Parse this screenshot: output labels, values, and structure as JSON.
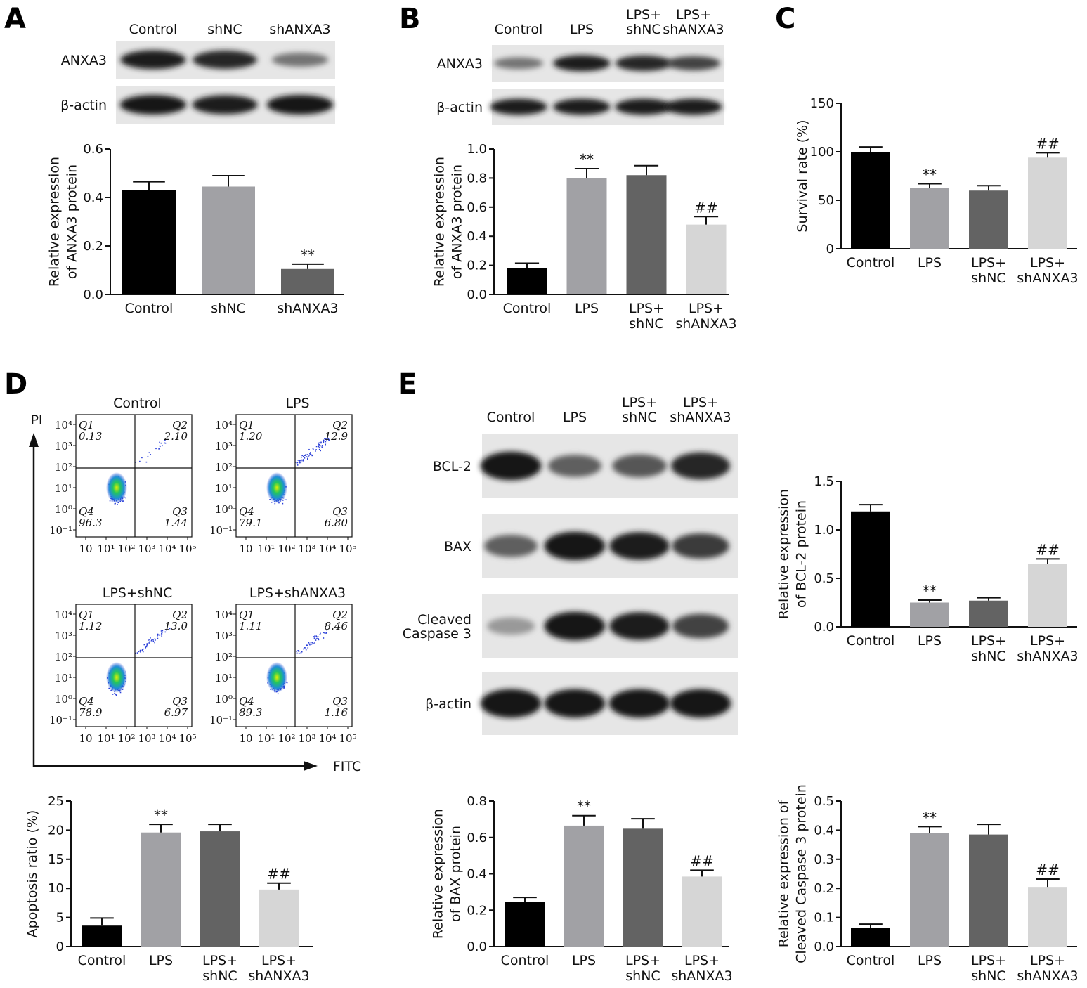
{
  "panel_labels": [
    "A",
    "B",
    "C",
    "D",
    "E"
  ],
  "blots": {
    "A": {
      "lanes": [
        "Control",
        "shNC",
        "shANXA3"
      ],
      "bands": [
        {
          "label": "ANXA3",
          "intensity": [
            0.9,
            0.85,
            0.45
          ]
        },
        {
          "label": "β-actin",
          "intensity": [
            0.95,
            0.9,
            0.95
          ]
        }
      ]
    },
    "B": {
      "lanes": [
        "Control",
        "LPS",
        "LPS+\nshNC",
        "LPS+\nshANXA3"
      ],
      "bands": [
        {
          "label": "ANXA3",
          "intensity": [
            0.45,
            0.9,
            0.85,
            0.7
          ]
        },
        {
          "label": "β-actin",
          "intensity": [
            0.9,
            0.9,
            0.9,
            0.9
          ]
        }
      ]
    },
    "E": {
      "lanes": [
        "Control",
        "LPS",
        "LPS+\nshNC",
        "LPS+\nshANXA3"
      ],
      "bands": [
        {
          "label": "BCL-2",
          "intensity": [
            0.95,
            0.55,
            0.6,
            0.85
          ]
        },
        {
          "label": "BAX",
          "intensity": [
            0.55,
            0.95,
            0.9,
            0.75
          ]
        },
        {
          "label": "Cleaved\nCaspase 3",
          "intensity": [
            0.25,
            0.95,
            0.9,
            0.7
          ]
        },
        {
          "label": "β-actin",
          "intensity": [
            0.95,
            0.95,
            0.95,
            0.95
          ]
        }
      ]
    }
  },
  "flow": {
    "y_axis_label": "PI",
    "x_axis_label": "FITC",
    "x_ticks": [
      "10",
      "10¹",
      "10²",
      "10³",
      "10⁴",
      "10⁵"
    ],
    "y_ticks": [
      "10⁴",
      "10³",
      "10²",
      "10¹",
      "10⁰",
      "10⁻¹"
    ],
    "plots": [
      {
        "title": "Control",
        "Q1": "0.13",
        "Q2": "2.10",
        "Q3": "1.44",
        "Q4": "96.3"
      },
      {
        "title": "LPS",
        "Q1": "1.20",
        "Q2": "12.9",
        "Q3": "6.80",
        "Q4": "79.1"
      },
      {
        "title": "LPS+shNC",
        "Q1": "1.12",
        "Q2": "13.0",
        "Q3": "6.97",
        "Q4": "78.9"
      },
      {
        "title": "LPS+shANXA3",
        "Q1": "1.11",
        "Q2": "8.46",
        "Q3": "1.16",
        "Q4": "89.3"
      }
    ]
  },
  "colors": {
    "Control": "#000000",
    "LPS": "#a1a1a5",
    "shNC_group": "#636363",
    "shANXA3_group": "#d6d6d6"
  },
  "chart_data": [
    {
      "panel": "A",
      "type": "bar",
      "categories": [
        "Control",
        "shNC",
        "shANXA3"
      ],
      "values": [
        0.43,
        0.445,
        0.105
      ],
      "errors": [
        0.035,
        0.045,
        0.02
      ],
      "sig": [
        "",
        "",
        "**"
      ],
      "ylabel": "Relative expression\nof ANXA3 protein",
      "ylim": [
        0,
        0.6
      ],
      "yticks": [
        0.0,
        0.2,
        0.4,
        0.6
      ],
      "colors": [
        "#000000",
        "#a1a1a5",
        "#636363"
      ]
    },
    {
      "panel": "B",
      "type": "bar",
      "categories": [
        "Control",
        "LPS",
        "LPS+\nshNC",
        "LPS+\nshANXA3"
      ],
      "values": [
        0.18,
        0.8,
        0.82,
        0.48
      ],
      "errors": [
        0.035,
        0.065,
        0.065,
        0.055
      ],
      "sig": [
        "",
        "**",
        "",
        "##"
      ],
      "ylabel": "Relative expression\nof ANXA3 protein",
      "ylim": [
        0,
        1.0
      ],
      "yticks": [
        0.0,
        0.2,
        0.4,
        0.6,
        0.8,
        1.0
      ],
      "colors": [
        "#000000",
        "#a1a1a5",
        "#636363",
        "#d6d6d6"
      ]
    },
    {
      "panel": "C",
      "type": "bar",
      "categories": [
        "Control",
        "LPS",
        "LPS+\nshNC",
        "LPS+\nshANXA3"
      ],
      "values": [
        100,
        63,
        60,
        94
      ],
      "errors": [
        5,
        4,
        5,
        5
      ],
      "sig": [
        "",
        "**",
        "",
        "##"
      ],
      "ylabel": "Survival rate (%)",
      "ylim": [
        0,
        150
      ],
      "yticks": [
        0,
        50,
        100,
        150
      ],
      "colors": [
        "#000000",
        "#a1a1a5",
        "#636363",
        "#d6d6d6"
      ]
    },
    {
      "panel": "D",
      "type": "bar",
      "categories": [
        "Control",
        "LPS",
        "LPS+\nshNC",
        "LPS+\nshANXA3"
      ],
      "values": [
        3.6,
        19.6,
        19.8,
        9.8
      ],
      "errors": [
        1.3,
        1.4,
        1.2,
        1.1
      ],
      "sig": [
        "",
        "**",
        "",
        "##"
      ],
      "ylabel": "Apoptosis ratio (%)",
      "ylim": [
        0,
        25
      ],
      "yticks": [
        0,
        5,
        10,
        15,
        20,
        25
      ],
      "colors": [
        "#000000",
        "#a1a1a5",
        "#636363",
        "#d6d6d6"
      ]
    },
    {
      "panel": "E-BCL2",
      "type": "bar",
      "categories": [
        "Control",
        "LPS",
        "LPS+\nshNC",
        "LPS+\nshANXA3"
      ],
      "values": [
        1.19,
        0.25,
        0.27,
        0.65
      ],
      "errors": [
        0.07,
        0.025,
        0.03,
        0.05
      ],
      "sig": [
        "",
        "**",
        "",
        "##"
      ],
      "ylabel": "Relative expression\nof BCL-2 protein",
      "ylim": [
        0,
        1.5
      ],
      "yticks": [
        0.0,
        0.5,
        1.0,
        1.5
      ],
      "colors": [
        "#000000",
        "#a1a1a5",
        "#636363",
        "#d6d6d6"
      ]
    },
    {
      "panel": "E-BAX",
      "type": "bar",
      "categories": [
        "Control",
        "LPS",
        "LPS+\nshNC",
        "LPS+\nshANXA3"
      ],
      "values": [
        0.245,
        0.665,
        0.648,
        0.385
      ],
      "errors": [
        0.025,
        0.055,
        0.055,
        0.035
      ],
      "sig": [
        "",
        "**",
        "",
        "##"
      ],
      "ylabel": "Relative expression\nof BAX protein",
      "ylim": [
        0,
        0.8
      ],
      "yticks": [
        0.0,
        0.2,
        0.4,
        0.6,
        0.8
      ],
      "colors": [
        "#000000",
        "#a1a1a5",
        "#636363",
        "#d6d6d6"
      ]
    },
    {
      "panel": "E-Casp3",
      "type": "bar",
      "categories": [
        "Control",
        "LPS",
        "LPS+\nshNC",
        "LPS+\nshANXA3"
      ],
      "values": [
        0.065,
        0.39,
        0.385,
        0.205
      ],
      "errors": [
        0.012,
        0.022,
        0.035,
        0.027
      ],
      "sig": [
        "",
        "**",
        "",
        "##"
      ],
      "ylabel": "Relative expression of\nCleaved Caspase 3 protein",
      "ylim": [
        0,
        0.5
      ],
      "yticks": [
        0.0,
        0.1,
        0.2,
        0.3,
        0.4,
        0.5
      ],
      "colors": [
        "#000000",
        "#a1a1a5",
        "#636363",
        "#d6d6d6"
      ]
    }
  ]
}
